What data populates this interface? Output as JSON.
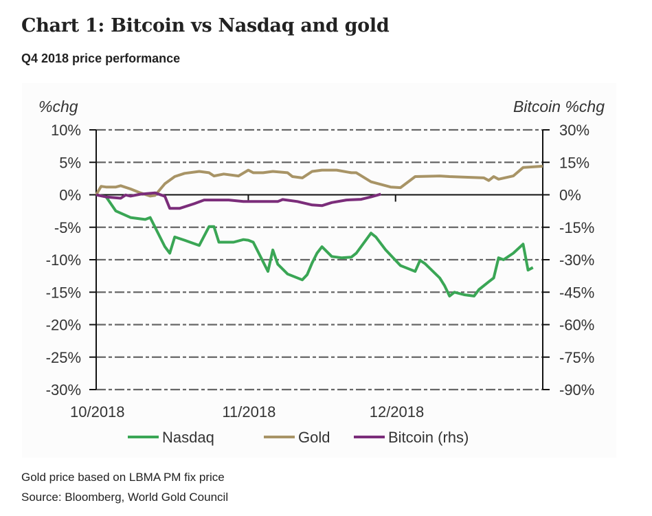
{
  "header": {
    "title": "Chart 1: Bitcoin vs Nasdaq and gold",
    "subtitle": "Q4 2018 price performance"
  },
  "footnotes": {
    "note": "Gold price based on LBMA PM fix price",
    "source": "Source: Bloomberg, World Gold Council"
  },
  "chart_data": {
    "type": "line",
    "title": "Chart 1: Bitcoin vs Nasdaq and gold",
    "subtitle": "Q4 2018 price performance",
    "xlabel": "",
    "ylabel": "%chg",
    "ylabel_right": "Bitcoin %chg",
    "x_ticks": [
      "10/2018",
      "11/2018",
      "12/2018"
    ],
    "x_range": [
      "2018-10-01",
      "2018-12-31"
    ],
    "ylim": [
      -30,
      10
    ],
    "ylim_right": [
      -90,
      30
    ],
    "y_ticks": [
      "10%",
      "5%",
      "0%",
      "-5%",
      "-10%",
      "-15%",
      "-20%",
      "-25%",
      "-30%"
    ],
    "y_ticks_right": [
      "30%",
      "15%",
      "0%",
      "-15%",
      "-30%",
      "-45%",
      "-60%",
      "-75%",
      "-90%"
    ],
    "grid": "horizontal dashed",
    "legend": "bottom",
    "series": [
      {
        "name": "Nasdaq",
        "axis": "left",
        "color": "#3aa655",
        "legend_label": "Nasdaq",
        "points": [
          [
            "2018-10-01",
            0.0
          ],
          [
            "2018-10-03",
            -0.3
          ],
          [
            "2018-10-05",
            -2.5
          ],
          [
            "2018-10-08",
            -3.5
          ],
          [
            "2018-10-10",
            -3.7
          ],
          [
            "2018-10-11",
            -3.8
          ],
          [
            "2018-10-12",
            -3.5
          ],
          [
            "2018-10-15",
            -8.0
          ],
          [
            "2018-10-16",
            -9.0
          ],
          [
            "2018-10-17",
            -6.5
          ],
          [
            "2018-10-19",
            -7.0
          ],
          [
            "2018-10-22",
            -7.8
          ],
          [
            "2018-10-24",
            -4.9
          ],
          [
            "2018-10-25",
            -4.9
          ],
          [
            "2018-10-26",
            -7.3
          ],
          [
            "2018-10-29",
            -7.3
          ],
          [
            "2018-10-31",
            -6.9
          ],
          [
            "2018-11-01",
            -7.0
          ],
          [
            "2018-11-02",
            -7.3
          ],
          [
            "2018-11-05",
            -11.8
          ],
          [
            "2018-11-06",
            -8.5
          ],
          [
            "2018-11-07",
            -10.7
          ],
          [
            "2018-11-09",
            -12.2
          ],
          [
            "2018-11-12",
            -13.1
          ],
          [
            "2018-11-13",
            -12.3
          ],
          [
            "2018-11-14",
            -10.5
          ],
          [
            "2018-11-15",
            -9.0
          ],
          [
            "2018-11-16",
            -8.0
          ],
          [
            "2018-11-18",
            -9.5
          ],
          [
            "2018-11-20",
            -9.7
          ],
          [
            "2018-11-22",
            -9.6
          ],
          [
            "2018-11-23",
            -9.0
          ],
          [
            "2018-11-26",
            -5.9
          ],
          [
            "2018-11-27",
            -6.5
          ],
          [
            "2018-11-29",
            -8.5
          ],
          [
            "2018-12-02",
            -10.9
          ],
          [
            "2018-12-03",
            -11.2
          ],
          [
            "2018-12-05",
            -11.8
          ],
          [
            "2018-12-06",
            -10.1
          ],
          [
            "2018-12-07",
            -10.6
          ],
          [
            "2018-12-10",
            -12.8
          ],
          [
            "2018-12-11",
            -14.0
          ],
          [
            "2018-12-12",
            -15.6
          ],
          [
            "2018-12-13",
            -15.0
          ],
          [
            "2018-12-15",
            -15.4
          ],
          [
            "2018-12-17",
            -15.6
          ],
          [
            "2018-12-18",
            -14.6
          ],
          [
            "2018-12-20",
            -13.4
          ],
          [
            "2018-12-21",
            -12.8
          ],
          [
            "2018-12-22",
            -9.7
          ],
          [
            "2018-12-23",
            -10.0
          ],
          [
            "2018-12-25",
            -9.0
          ],
          [
            "2018-12-27",
            -7.6
          ],
          [
            "2018-12-28",
            -11.6
          ],
          [
            "2018-12-29",
            -11.2
          ]
        ]
      },
      {
        "name": "Gold",
        "axis": "left",
        "color": "#a89466",
        "legend_label": "Gold",
        "points": [
          [
            "2018-10-01",
            0.0
          ],
          [
            "2018-10-02",
            1.3
          ],
          [
            "2018-10-03",
            1.2
          ],
          [
            "2018-10-05",
            1.2
          ],
          [
            "2018-10-06",
            1.4
          ],
          [
            "2018-10-08",
            0.9
          ],
          [
            "2018-10-10",
            0.3
          ],
          [
            "2018-10-12",
            -0.2
          ],
          [
            "2018-10-13",
            -0.1
          ],
          [
            "2018-10-15",
            1.7
          ],
          [
            "2018-10-17",
            2.8
          ],
          [
            "2018-10-19",
            3.3
          ],
          [
            "2018-10-22",
            3.6
          ],
          [
            "2018-10-24",
            3.4
          ],
          [
            "2018-10-25",
            2.9
          ],
          [
            "2018-10-27",
            3.2
          ],
          [
            "2018-10-30",
            2.9
          ],
          [
            "2018-11-01",
            3.8
          ],
          [
            "2018-11-02",
            3.4
          ],
          [
            "2018-11-04",
            3.4
          ],
          [
            "2018-11-06",
            3.6
          ],
          [
            "2018-11-09",
            3.4
          ],
          [
            "2018-11-10",
            2.8
          ],
          [
            "2018-11-12",
            2.6
          ],
          [
            "2018-11-14",
            3.6
          ],
          [
            "2018-11-16",
            3.8
          ],
          [
            "2018-11-19",
            3.8
          ],
          [
            "2018-11-22",
            3.4
          ],
          [
            "2018-11-23",
            3.4
          ],
          [
            "2018-11-26",
            2.0
          ],
          [
            "2018-11-30",
            1.2
          ],
          [
            "2018-12-02",
            1.1
          ],
          [
            "2018-12-05",
            2.8
          ],
          [
            "2018-12-10",
            2.9
          ],
          [
            "2018-12-12",
            2.8
          ],
          [
            "2018-12-19",
            2.6
          ],
          [
            "2018-12-20",
            2.2
          ],
          [
            "2018-12-21",
            2.8
          ],
          [
            "2018-12-22",
            2.4
          ],
          [
            "2018-12-25",
            2.9
          ],
          [
            "2018-12-27",
            4.2
          ],
          [
            "2018-12-31",
            4.4
          ]
        ]
      },
      {
        "name": "Bitcoin (rhs)",
        "axis": "right",
        "color": "#7b2d7a",
        "legend_label": "Bitcoin (rhs)",
        "points": [
          [
            "2018-10-01",
            0.0
          ],
          [
            "2018-10-03",
            -1.0
          ],
          [
            "2018-10-06",
            -1.6
          ],
          [
            "2018-10-07",
            -0.1
          ],
          [
            "2018-10-08",
            -0.6
          ],
          [
            "2018-10-10",
            0.3
          ],
          [
            "2018-10-13",
            0.9
          ],
          [
            "2018-10-15",
            -0.7
          ],
          [
            "2018-10-16",
            -6.3
          ],
          [
            "2018-10-18",
            -6.3
          ],
          [
            "2018-10-21",
            -4.1
          ],
          [
            "2018-10-23",
            -2.4
          ],
          [
            "2018-10-28",
            -2.4
          ],
          [
            "2018-10-31",
            -3.1
          ],
          [
            "2018-11-03",
            -3.1
          ],
          [
            "2018-11-07",
            -3.1
          ],
          [
            "2018-11-08",
            -2.2
          ],
          [
            "2018-11-11",
            -3.1
          ],
          [
            "2018-11-14",
            -4.7
          ],
          [
            "2018-11-16",
            -5.0
          ],
          [
            "2018-11-18",
            -3.6
          ],
          [
            "2018-11-21",
            -2.4
          ],
          [
            "2018-11-24",
            -2.1
          ],
          [
            "2018-11-26",
            -1.0
          ],
          [
            "2018-11-28",
            0.3
          ]
        ]
      }
    ]
  }
}
